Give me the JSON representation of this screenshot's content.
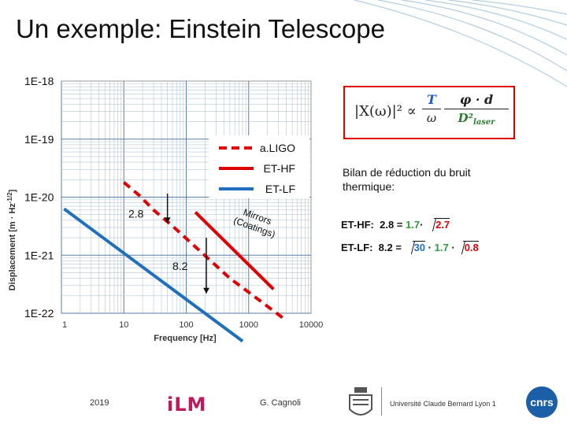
{
  "slide": {
    "title": "Un exemple: Einstein Telescope",
    "date": "2019",
    "author": "G. Cagnoli",
    "colors": {
      "ligo": "#e00000",
      "et_hf": "#e00000",
      "et_lf": "#1f6fbf",
      "grid": "#b5c6d8",
      "box": "#e00000"
    }
  },
  "formula": {
    "lhs": "|X(ω)|² ∝",
    "frac1_num": "T",
    "frac1_den": "ω",
    "frac2_num": "φ · d",
    "frac2_den_base": "D²",
    "frac2_den_sub": "laser"
  },
  "bilan": {
    "text": "Bilan de réduction du bruit thermique:",
    "hf_label": "ET-HF:",
    "hf_eq": "2.8 =",
    "hf_v1": "1.7",
    "hf_dot": "·",
    "hf_v2": "2.7",
    "lf_label": "ET-LF:",
    "lf_eq": "8.2 =",
    "lf_v1": "30",
    "lf_dot1": "·",
    "lf_v2": "1.7",
    "lf_dot2": "·",
    "lf_v3": "0.8"
  },
  "logos": {
    "ilm": "iLM",
    "univ": "Université Claude Bernard   Lyon 1",
    "cnrs": "cnrs"
  },
  "chart_data": {
    "type": "line",
    "xlabel": "Frequency   [Hz]",
    "ylabel": "Displacement   [m · Hz",
    "ylabel_sup": "-1/2",
    "ylabel_end": "]",
    "xscale": "log",
    "yscale": "log",
    "xlim": [
      1,
      10000
    ],
    "ylim": [
      1e-22,
      1e-18
    ],
    "x_ticks": [
      1,
      10,
      100,
      1000,
      10000
    ],
    "x_tick_labels": [
      "1",
      "10",
      "100",
      "1000",
      "10000"
    ],
    "y_ticks": [
      1e-22,
      1e-21,
      1e-20,
      1e-19,
      1e-18
    ],
    "y_tick_labels": [
      "1E-22",
      "1E-21",
      "1E-20",
      "1E-19",
      "1E-18"
    ],
    "grid": true,
    "legend_position": "top-right",
    "series": [
      {
        "name": "a.LIGO",
        "style": "dashed",
        "color": "#e00000",
        "x": [
          10,
          18,
          30,
          60,
          150,
          500,
          1000,
          4000
        ],
        "y": [
          1.8e-20,
          1.05e-20,
          6e-21,
          3.2e-21,
          1.3e-21,
          4e-22,
          2.3e-22,
          7.5e-23
        ]
      },
      {
        "name": "ET-HF",
        "style": "solid",
        "color": "#e00000",
        "x": [
          140,
          2500
        ],
        "y": [
          5.5e-21,
          2.6e-22
        ]
      },
      {
        "name": "ET-LF",
        "style": "solid",
        "color": "#1f6fbf",
        "x": [
          1.1,
          800
        ],
        "y": [
          6.3e-21,
          3.3e-23
        ]
      }
    ],
    "annotations": [
      {
        "text": "2.8",
        "arrow_x": 50
      },
      {
        "text": "8.2",
        "arrow_x": 210
      },
      {
        "text": "Mirrors (Coatings)"
      }
    ]
  }
}
